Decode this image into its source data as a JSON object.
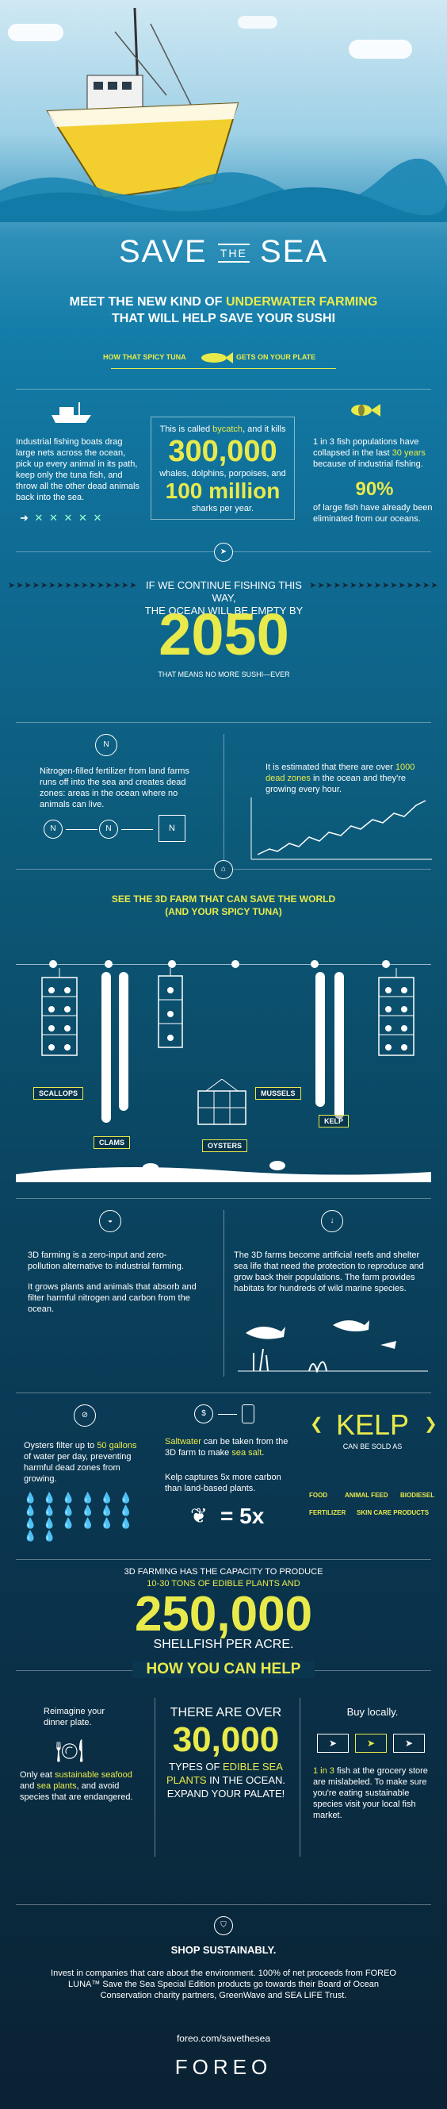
{
  "hero": {
    "title_save": "SAVE",
    "title_the": "THE",
    "title_sea": "SEA",
    "subtitle_line1_a": "MEET THE NEW KIND OF ",
    "subtitle_line1_b": "UNDERWATER FARMING",
    "subtitle_line2": "THAT WILL HELP SAVE YOUR SUSHI",
    "spicy_left": "HOW THAT SPICY TUNA",
    "spicy_right": "GETS ON YOUR PLATE"
  },
  "bycatch": {
    "left_text": "Industrial fishing boats drag large nets across the ocean, pick up every animal in its path, keep only the tuna fish, and throw all the other dead animals back into the sea.",
    "center_intro_a": "This is called ",
    "center_intro_b": "bycatch",
    "center_intro_c": ", and it kills",
    "big_number": "300,000",
    "species": "whales, dolphins, porpoises, and",
    "million": "100 million",
    "sharks": "sharks per year.",
    "right_text_a": "1 in 3 fish populations have collapsed in the last ",
    "right_years": "30 years",
    "right_text_b": " because of industrial fishing.",
    "percent": "90%",
    "percent_text": "of large fish have already been eliminated from our oceans."
  },
  "empty": {
    "line1": "IF WE CONTINUE FISHING THIS WAY,",
    "line2": "THE OCEAN WILL BE EMPTY BY",
    "year": "2050",
    "line3": "THAT MEANS NO MORE SUSHI—EVER"
  },
  "nitrogen": {
    "left_text": "Nitrogen-filled fertilizer from land farms runs off into the sea and creates dead zones: areas in the ocean where no animals can live.",
    "n_symbol": "N",
    "right_text_a": "It is estimated that there are over ",
    "right_dead": "1000 dead zones",
    "right_text_b": " in the ocean and they're growing every hour."
  },
  "farm": {
    "heading1": "SEE THE 3D FARM THAT CAN SAVE THE WORLD",
    "heading2": "(AND YOUR SPICY TUNA)",
    "labels": [
      "SCALLOPS",
      "CLAMS",
      "OYSTERS",
      "MUSSELS",
      "KELP"
    ]
  },
  "about": {
    "left_p1": "3D farming is a zero-input and zero-pollution alternative to industrial farming.",
    "left_p2": "It grows plants and animals that absorb and filter harmful nitrogen and carbon from the ocean.",
    "right_p": "The 3D farms become artificial reefs and shelter sea life that need the protection to reproduce and grow back their populations. The farm provides habitats for hundreds of wild marine species."
  },
  "benefits": {
    "oyster_a": "Oysters filter up to ",
    "oyster_gal": "50 gallons",
    "oyster_b": " of water per day, preventing harmful dead zones from growing.",
    "salt_a": "Saltwater",
    "salt_b": " can be taken from the 3D farm to make ",
    "salt_c": "sea salt",
    "salt_d": ".",
    "kelp_carbon": "Kelp captures 5x more carbon than land-based plants.",
    "five_x": "= 5x",
    "kelp_title": "KELP",
    "kelp_sub": "CAN BE SOLD AS",
    "kelp_uses": [
      "FOOD",
      "ANIMAL FEED",
      "BIODIESEL",
      "FERTILIZER",
      "SKIN CARE PRODUCTS"
    ]
  },
  "capacity": {
    "line1": "3D FARMING HAS THE CAPACITY TO PRODUCE",
    "line2": "10-30 TONS OF EDIBLE PLANTS AND",
    "number": "250,000",
    "line3": "SHELLFISH PER ACRE."
  },
  "help": {
    "heading": "HOW YOU CAN HELP",
    "plate_title": "Reimagine your dinner plate.",
    "plate_a": "Only eat ",
    "plate_b": "sustainable seafood",
    "plate_c": " and ",
    "plate_d": "sea plants",
    "plate_e": ", and avoid species that are endangered.",
    "center_l1": "THERE ARE OVER",
    "center_num": "30,000",
    "center_l2a": "TYPES OF ",
    "center_l2b": "EDIBLE SEA",
    "center_l3a": "PLANTS",
    "center_l3b": " IN THE OCEAN.",
    "center_l4": "EXPAND YOUR PALATE!",
    "local_title": "Buy locally.",
    "local_a": "1 in 3",
    "local_b": " fish at the grocery store are mislabeled. To make sure you're eating sustainable species visit your local fish market."
  },
  "shop": {
    "title": "SHOP SUSTAINABLY.",
    "text": "Invest in companies that care about the environment. 100% of net proceeds from FOREO LUNA™ Save the Sea Special Edition products go towards their Board of Ocean Conservation charity partners, GreenWave and SEA LIFE Trust.",
    "url": "foreo.com/savethesea",
    "brand": "FOREO"
  }
}
